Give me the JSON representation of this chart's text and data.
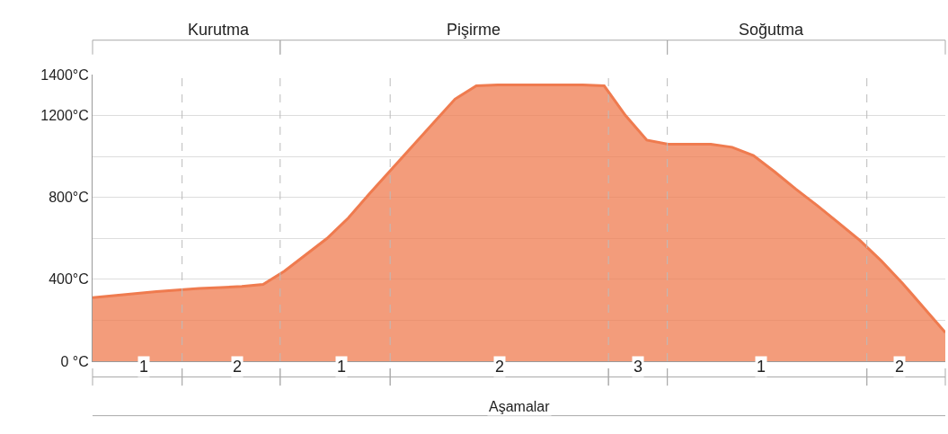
{
  "chart_data": {
    "type": "area",
    "xlabel": "Aşamalar",
    "categories": [
      null,
      null,
      null,
      null,
      null,
      null,
      null,
      null,
      null,
      null,
      null,
      null,
      null,
      null,
      null,
      null,
      null,
      null,
      null,
      null,
      null,
      null,
      null,
      null,
      null,
      null,
      null,
      null,
      null,
      null,
      null,
      null,
      null,
      null,
      null,
      null,
      null,
      null,
      null,
      null,
      null
    ],
    "series": [
      {
        "color": "#ef7b4f",
        "values": [
          310,
          320,
          330,
          340,
          348,
          355,
          360,
          365,
          375,
          440,
          520,
          600,
          700,
          820,
          935,
          1050,
          1165,
          1280,
          1345,
          1350,
          1350,
          1350,
          1350,
          1350,
          1345,
          1200,
          1080,
          1060,
          1060,
          1060,
          1045,
          1005,
          925,
          840,
          760,
          675,
          590,
          490,
          380,
          260,
          140
        ]
      }
    ],
    "ylim": [
      0,
      1400
    ],
    "yticks": [
      {
        "value": 0,
        "label": "0 °C"
      },
      {
        "value": 200,
        "label": null
      },
      {
        "value": 400,
        "label": "400°C"
      },
      {
        "value": 600,
        "label": null
      },
      {
        "value": 800,
        "label": "800°C"
      },
      {
        "value": 1000,
        "label": null
      },
      {
        "value": 1200,
        "label": "1200°C"
      },
      {
        "value": 1400,
        "label": "1400°C"
      }
    ],
    "tick_labels": "y",
    "grid": "y",
    "marker": "none",
    "annotations": [
      "Kurutma",
      "Pişirme",
      "Soğutma",
      "1",
      "2",
      "1",
      "2",
      "3",
      "1",
      "2"
    ]
  }
}
